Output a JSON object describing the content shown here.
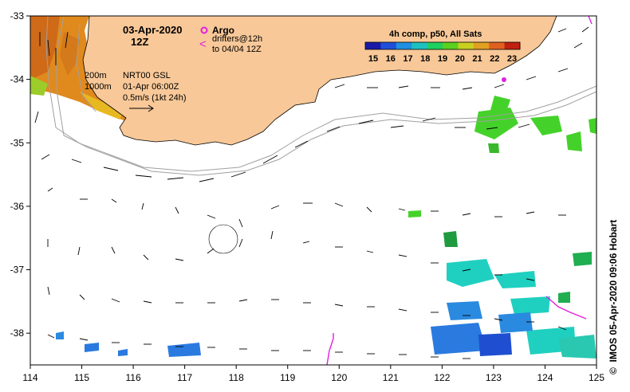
{
  "map": {
    "date": "03-Apr-2020",
    "hour": "12Z",
    "argo_label": "Argo",
    "drifter_symbol": "<",
    "drifter_label_1": "drifters@12h",
    "drifter_label_2": "to 04/04 12Z",
    "iso_200": "200m",
    "iso_1000": "1000m",
    "product": "NRT00 GSL",
    "product_time": "01-Apr 06:00Z",
    "scale_text": "0.5m/s (1kt 24h)",
    "credit": "IMOS 05-Apr-2020 09:06 Hobart",
    "copyright_symbol": "©"
  },
  "colorbar": {
    "title": "4h comp, p50, All Sats",
    "ticks": [
      "15",
      "16",
      "17",
      "18",
      "19",
      "20",
      "21",
      "22",
      "23"
    ],
    "colors": [
      "#1a1aa6",
      "#1f4fd8",
      "#1f8fe0",
      "#1fc0c0",
      "#1fd060",
      "#5ad020",
      "#c8d020",
      "#e0a020",
      "#e06020",
      "#c02010"
    ]
  },
  "axes": {
    "x_ticks": [
      "114",
      "115",
      "116",
      "117",
      "118",
      "119",
      "120",
      "121",
      "122",
      "123",
      "124",
      "125"
    ],
    "y_ticks": [
      "-33",
      "-34",
      "-35",
      "-36",
      "-37",
      "-38"
    ],
    "lon_range": [
      114,
      125
    ],
    "lat_range": [
      -38.5,
      -33
    ]
  },
  "colors": {
    "land": "#f8c898",
    "isobath": "#a0a0a0",
    "argo": "#e020e0",
    "drifter": "#e020e0"
  }
}
